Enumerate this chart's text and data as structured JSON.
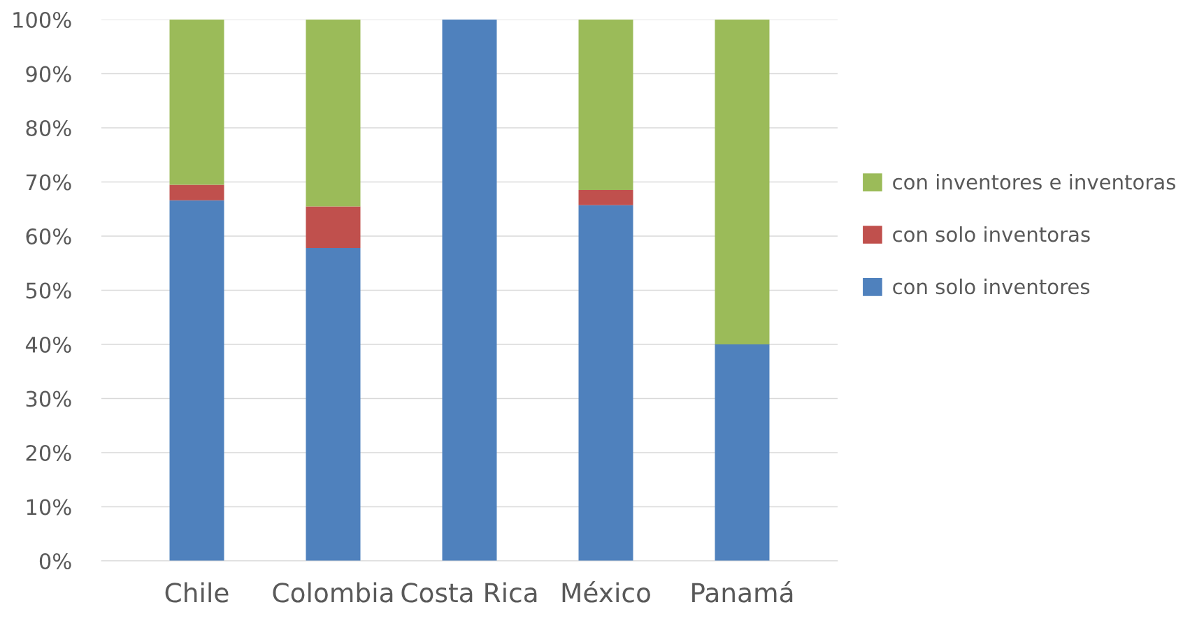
{
  "chart_data": {
    "type": "bar",
    "stacked": true,
    "categories": [
      "Chile",
      "Colombia",
      "Costa Rica",
      "México",
      "Panamá"
    ],
    "series": [
      {
        "name": "con solo inventores",
        "color": "#4f81bd",
        "values": [
          66.6,
          57.8,
          100,
          65.7,
          40
        ]
      },
      {
        "name": "con solo inventoras",
        "color": "#c0504d",
        "values": [
          2.9,
          7.7,
          0,
          2.8,
          0
        ]
      },
      {
        "name": "con inventores e inventoras",
        "color": "#9bbb59",
        "values": [
          30.5,
          34.5,
          0,
          31.5,
          60
        ]
      }
    ],
    "ylim": [
      0,
      100
    ],
    "yticks": [
      {
        "value": 0,
        "label": "0%"
      },
      {
        "value": 10,
        "label": "10%"
      },
      {
        "value": 20,
        "label": "20%"
      },
      {
        "value": 30,
        "label": "30%"
      },
      {
        "value": 40,
        "label": "40%"
      },
      {
        "value": 50,
        "label": "50%"
      },
      {
        "value": 60,
        "label": "60%"
      },
      {
        "value": 70,
        "label": "70%"
      },
      {
        "value": 80,
        "label": "80%"
      },
      {
        "value": 90,
        "label": "90%"
      },
      {
        "value": 100,
        "label": "100%"
      }
    ],
    "grid": "y",
    "legend": "right"
  }
}
